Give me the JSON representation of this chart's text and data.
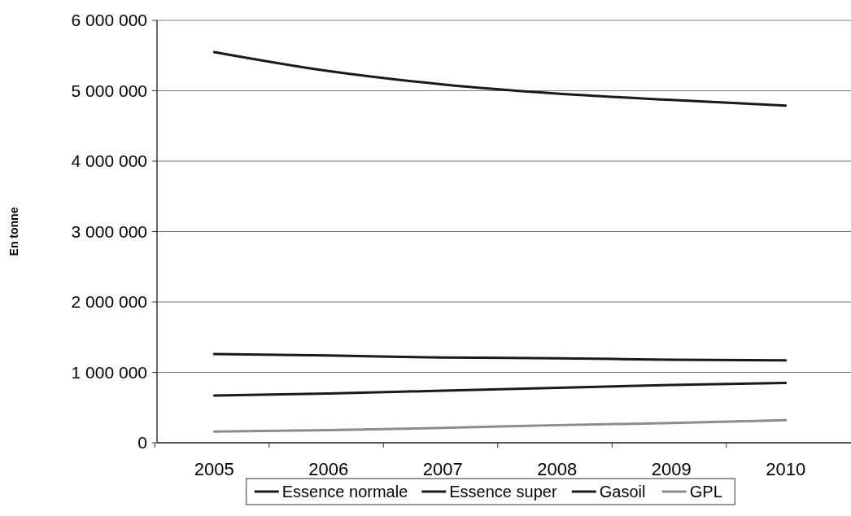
{
  "chart_data": {
    "type": "line",
    "ylabel": "En tonne",
    "categories": [
      "2005",
      "2006",
      "2007",
      "2008",
      "2009",
      "2010"
    ],
    "series": [
      {
        "name": "Essence normale",
        "color": "#1a1a1a",
        "values": [
          1260000,
          1240000,
          1210000,
          1200000,
          1180000,
          1170000
        ]
      },
      {
        "name": "Essence super",
        "color": "#1a1a1a",
        "values": [
          670000,
          700000,
          740000,
          780000,
          820000,
          850000
        ]
      },
      {
        "name": "Gasoil",
        "color": "#1a1a1a",
        "values": [
          5550000,
          5280000,
          5090000,
          4960000,
          4870000,
          4790000
        ]
      },
      {
        "name": "GPL",
        "color": "#8c8c8c",
        "values": [
          160000,
          180000,
          210000,
          250000,
          280000,
          320000
        ]
      }
    ],
    "ylim": [
      0,
      6000000
    ],
    "yticks": [
      {
        "value": 0,
        "label": "0"
      },
      {
        "value": 1000000,
        "label": "1 000 000"
      },
      {
        "value": 2000000,
        "label": "2 000 000"
      },
      {
        "value": 3000000,
        "label": "3 000 000"
      },
      {
        "value": 4000000,
        "label": "4 000 000"
      },
      {
        "value": 5000000,
        "label": "5 000 000"
      },
      {
        "value": 6000000,
        "label": "6 000 000"
      }
    ],
    "grid": "y",
    "legend": "bottom",
    "marker": "none",
    "line_style": "solid"
  }
}
